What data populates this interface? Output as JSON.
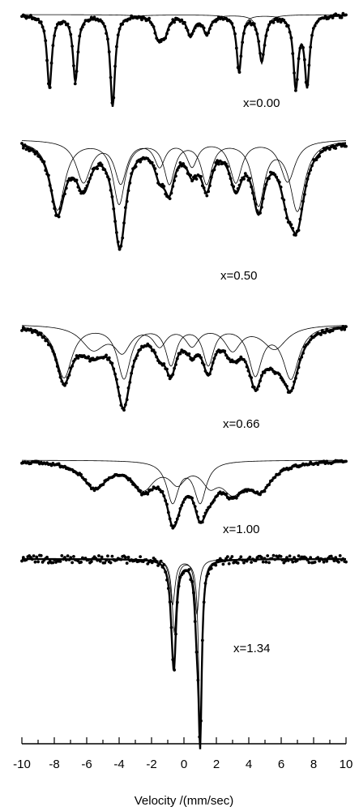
{
  "chart_data": {
    "type": "line",
    "xlabel": "Velocity /(mm/sec)",
    "xlim": [
      -10,
      10
    ],
    "xticks": [
      -10,
      -8,
      -6,
      -4,
      -2,
      0,
      2,
      4,
      6,
      8,
      10
    ],
    "grid": false,
    "panels": [
      {
        "label": "x=0.00",
        "baseline": 1.0,
        "components": [
          {
            "lines": [
              {
                "v": -8.3,
                "d": 0.72,
                "w": 0.18
              },
              {
                "v": -6.7,
                "d": 0.65,
                "w": 0.18
              },
              {
                "v": -4.4,
                "d": 0.9,
                "w": 0.18
              },
              {
                "v": 3.4,
                "d": 0.55,
                "w": 0.18
              },
              {
                "v": 6.9,
                "d": 0.7,
                "w": 0.18
              },
              {
                "v": 7.6,
                "d": 0.68,
                "w": 0.18
              }
            ]
          },
          {
            "lines": [
              {
                "v": -1.6,
                "d": 0.2,
                "w": 0.25
              },
              {
                "v": -1.2,
                "d": 0.18,
                "w": 0.25
              },
              {
                "v": 0.4,
                "d": 0.2,
                "w": 0.25
              },
              {
                "v": 1.4,
                "d": 0.18,
                "w": 0.25
              },
              {
                "v": 4.8,
                "d": 0.45,
                "w": 0.22
              }
            ]
          }
        ]
      },
      {
        "label": "x=0.50",
        "baseline": 1.0,
        "components": [
          {
            "lines": [
              {
                "v": -7.8,
                "d": 0.5,
                "w": 0.55
              },
              {
                "v": -4.0,
                "d": 0.45,
                "w": 0.45
              },
              {
                "v": -0.9,
                "d": 0.3,
                "w": 0.4
              },
              {
                "v": 1.4,
                "d": 0.3,
                "w": 0.4
              },
              {
                "v": 4.6,
                "d": 0.45,
                "w": 0.45
              },
              {
                "v": 7.0,
                "d": 0.5,
                "w": 0.55
              }
            ]
          },
          {
            "lines": [
              {
                "v": -6.2,
                "d": 0.3,
                "w": 0.55
              },
              {
                "v": -3.9,
                "d": 0.3,
                "w": 0.45
              },
              {
                "v": -1.5,
                "d": 0.18,
                "w": 0.4
              },
              {
                "v": 0.5,
                "d": 0.18,
                "w": 0.4
              },
              {
                "v": 3.2,
                "d": 0.3,
                "w": 0.45
              },
              {
                "v": 6.4,
                "d": 0.3,
                "w": 0.55
              }
            ]
          }
        ]
      },
      {
        "label": "x=0.66",
        "baseline": 1.0,
        "components": [
          {
            "lines": [
              {
                "v": -7.4,
                "d": 0.55,
                "w": 0.6
              },
              {
                "v": -3.7,
                "d": 0.55,
                "w": 0.5
              },
              {
                "v": -0.8,
                "d": 0.4,
                "w": 0.4
              },
              {
                "v": 1.5,
                "d": 0.4,
                "w": 0.4
              },
              {
                "v": 4.4,
                "d": 0.5,
                "w": 0.5
              },
              {
                "v": 6.6,
                "d": 0.55,
                "w": 0.6
              }
            ]
          },
          {
            "lines": [
              {
                "v": -5.6,
                "d": 0.25,
                "w": 0.9
              },
              {
                "v": -3.8,
                "d": 0.25,
                "w": 0.6
              },
              {
                "v": -1.5,
                "d": 0.2,
                "w": 0.5
              },
              {
                "v": 0.5,
                "d": 0.2,
                "w": 0.5
              },
              {
                "v": 3.0,
                "d": 0.25,
                "w": 0.6
              },
              {
                "v": 5.6,
                "d": 0.25,
                "w": 0.9
              }
            ]
          }
        ]
      },
      {
        "label": "x=1.00",
        "baseline": 1.0,
        "components": [
          {
            "lines": [
              {
                "v": -0.7,
                "d": 0.55,
                "w": 0.45
              },
              {
                "v": 1.0,
                "d": 0.55,
                "w": 0.45
              }
            ]
          },
          {
            "lines": [
              {
                "v": -5.5,
                "d": 0.35,
                "w": 0.9
              },
              {
                "v": -2.5,
                "d": 0.35,
                "w": 0.8
              },
              {
                "v": -0.4,
                "d": 0.25,
                "w": 0.6
              },
              {
                "v": 1.6,
                "d": 0.25,
                "w": 0.6
              },
              {
                "v": 3.0,
                "d": 0.35,
                "w": 0.8
              },
              {
                "v": 4.7,
                "d": 0.35,
                "w": 0.9
              }
            ]
          }
        ]
      },
      {
        "label": "x=1.34",
        "baseline": 1.0,
        "components": [
          {
            "lines": [
              {
                "v": -0.6,
                "d": 0.4,
                "w": 0.15
              },
              {
                "v": 1.0,
                "d": 0.92,
                "w": 0.12
              }
            ]
          },
          {
            "lines": [
              {
                "v": -0.7,
                "d": 0.25,
                "w": 0.18
              },
              {
                "v": 0.8,
                "d": 0.3,
                "w": 0.16
              }
            ]
          }
        ]
      }
    ]
  }
}
